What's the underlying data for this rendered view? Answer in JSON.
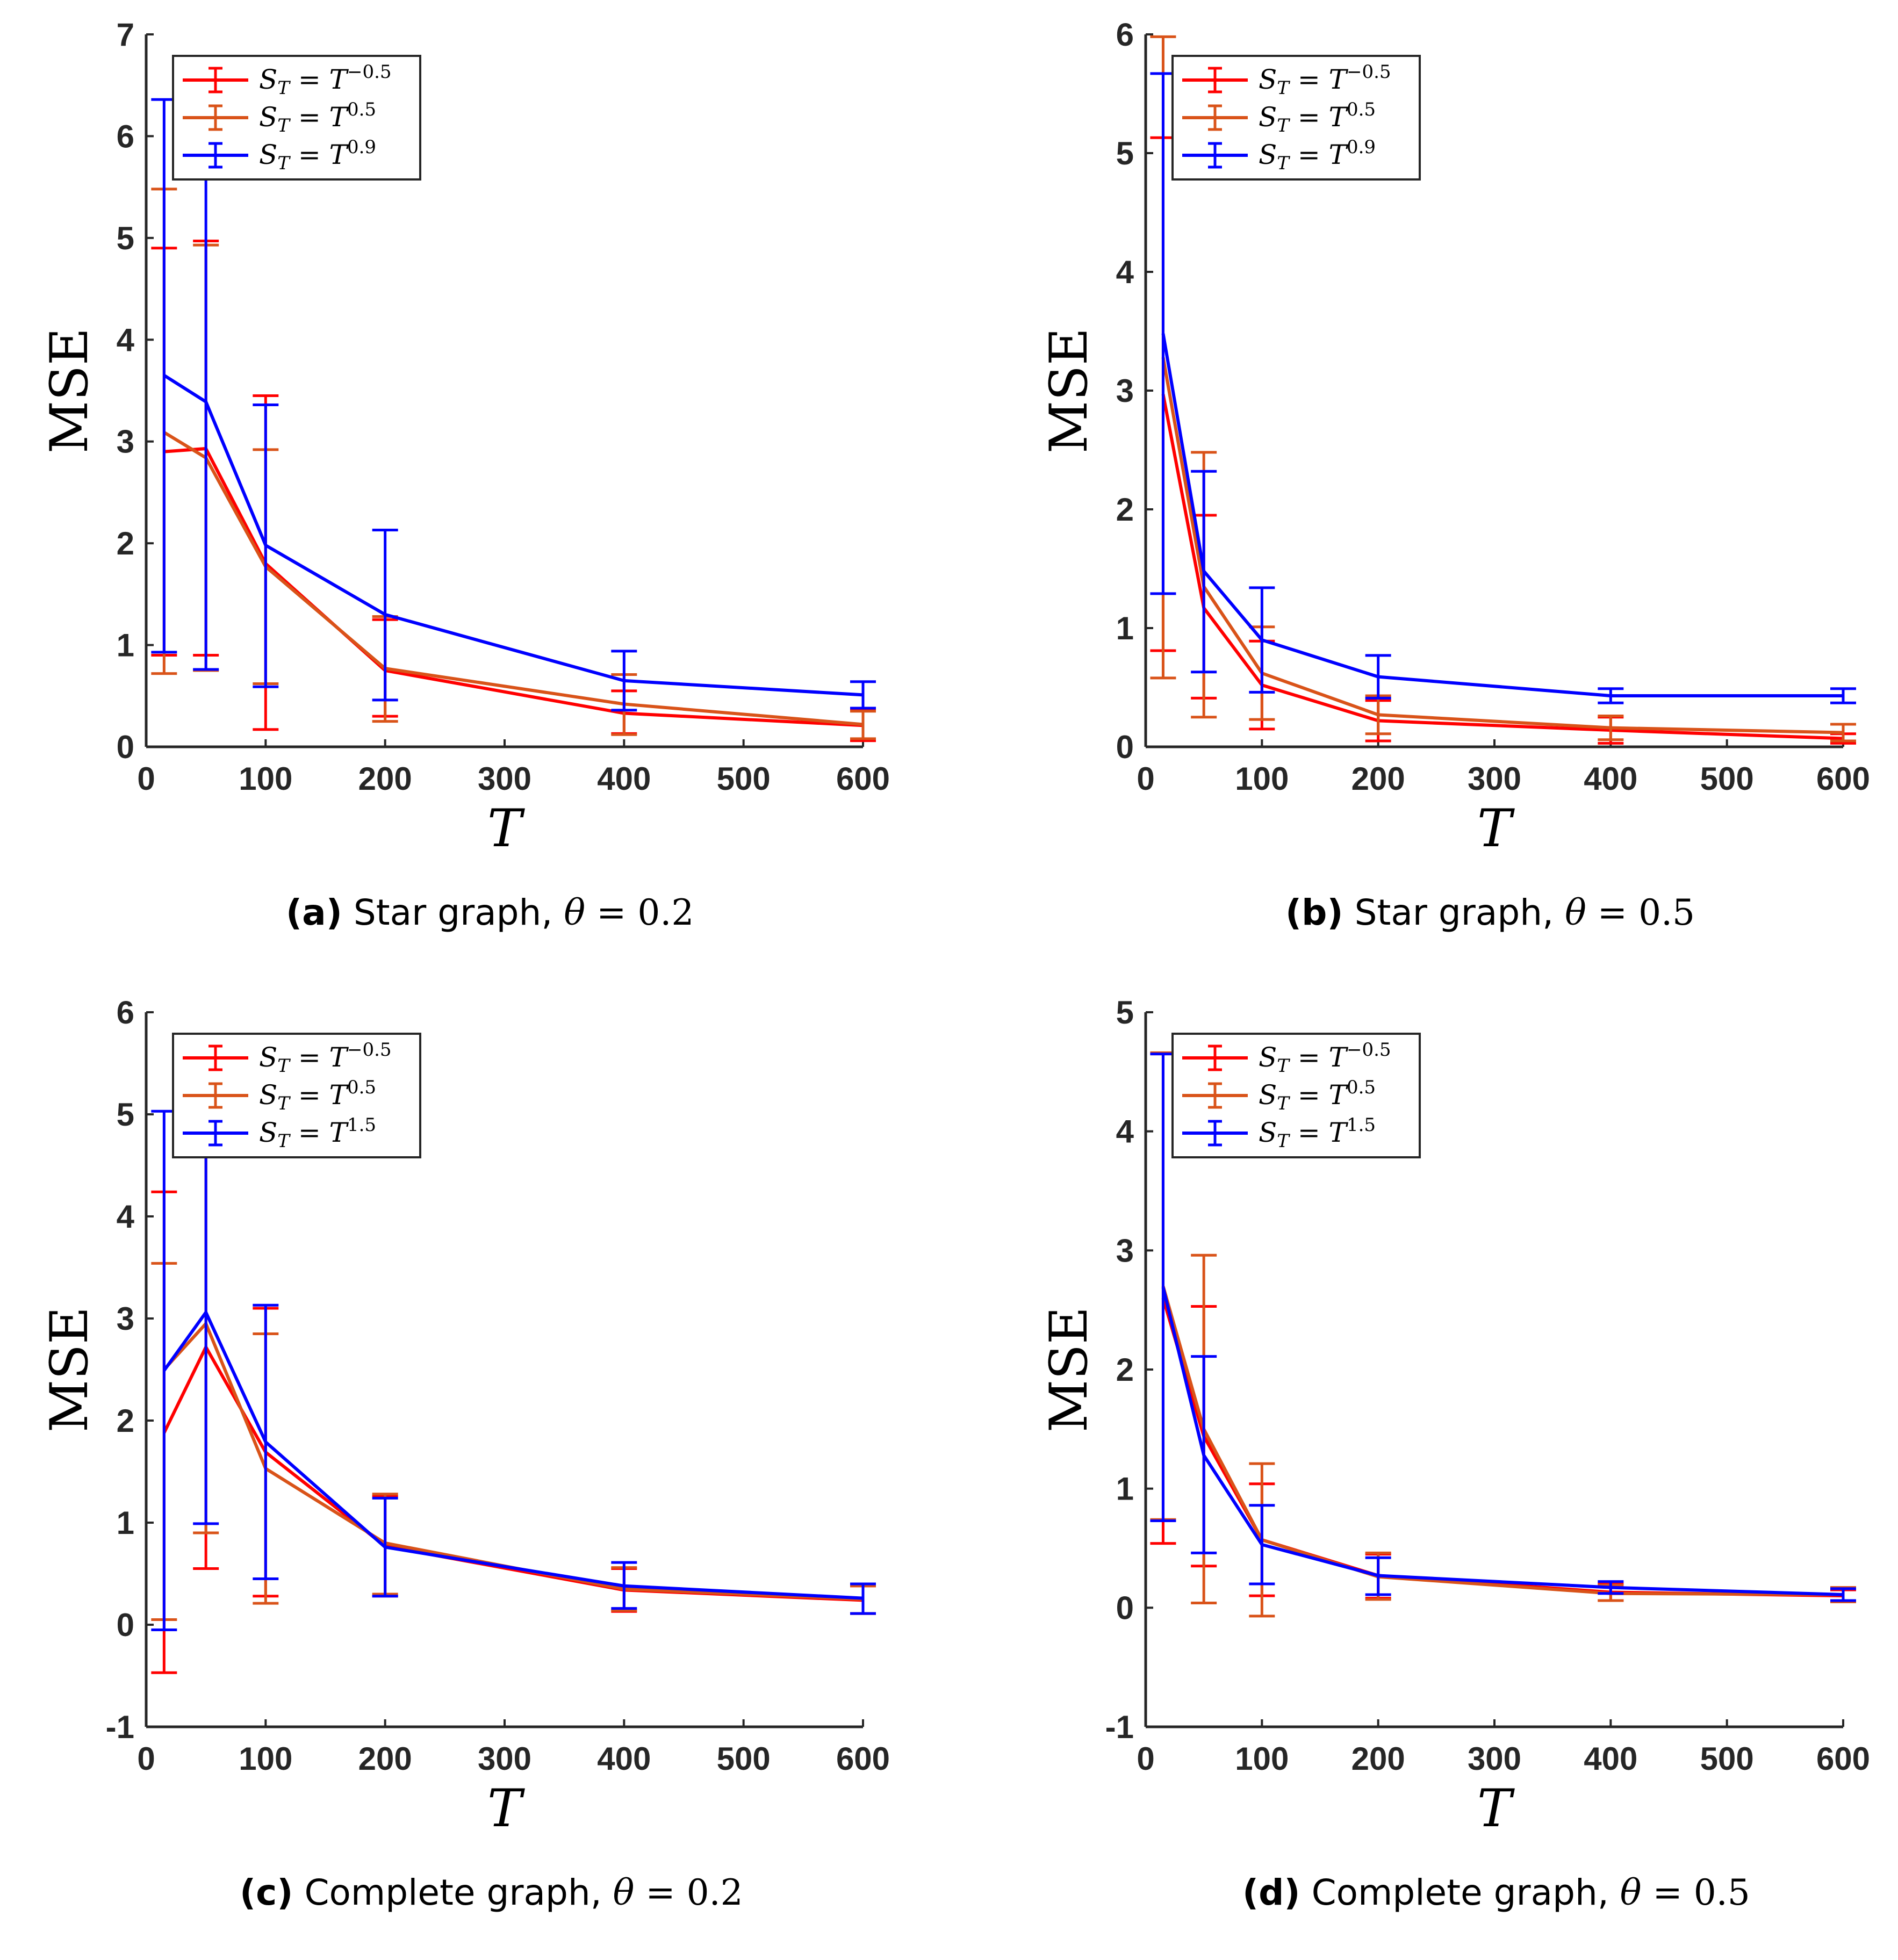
{
  "colors": {
    "red": "#ff0000",
    "orange": "#d95319",
    "blue": "#0000ff",
    "axis": "#262626"
  },
  "chart_data": [
    {
      "id": "a",
      "type": "line",
      "caption_label": "(a)",
      "caption_text": "Star graph, ",
      "caption_theta": "θ",
      "caption_eq": " = ",
      "caption_value": "0.2",
      "xlabel": "T",
      "ylabel": "MSE",
      "xlim": [
        0,
        600
      ],
      "ylim": [
        0,
        7
      ],
      "xticks": [
        "0",
        "100",
        "200",
        "300",
        "400",
        "500",
        "600"
      ],
      "yticks": [
        "0",
        "1",
        "2",
        "3",
        "4",
        "5",
        "6",
        "7"
      ],
      "x": [
        15,
        50,
        100,
        200,
        400,
        600
      ],
      "legend_base": "S",
      "legend_sub": "T",
      "legend_eq": " = T",
      "series": [
        {
          "name": "S_T = T^-0.5",
          "exponent": "−0.5",
          "color": "red",
          "values": [
            2.9,
            2.93,
            1.8,
            0.75,
            0.33,
            0.21
          ],
          "lower": [
            0.9,
            0.9,
            0.17,
            0.3,
            0.13,
            0.06
          ],
          "upper": [
            4.9,
            4.97,
            3.45,
            1.25,
            0.55,
            0.36
          ]
        },
        {
          "name": "S_T = T^0.5",
          "exponent": "0.5",
          "color": "orange",
          "values": [
            3.09,
            2.84,
            1.77,
            0.77,
            0.42,
            0.22
          ],
          "lower": [
            0.72,
            0.75,
            0.62,
            0.25,
            0.12,
            0.08
          ],
          "upper": [
            5.48,
            4.93,
            2.92,
            1.28,
            0.71,
            0.35
          ]
        },
        {
          "name": "S_T = T^0.9",
          "exponent": "0.9",
          "color": "blue",
          "values": [
            3.65,
            3.39,
            1.98,
            1.3,
            0.65,
            0.51
          ],
          "lower": [
            0.93,
            0.76,
            0.59,
            0.46,
            0.36,
            0.38
          ],
          "upper": [
            6.36,
            6.0,
            3.36,
            2.13,
            0.94,
            0.64
          ]
        }
      ]
    },
    {
      "id": "b",
      "type": "line",
      "caption_label": "(b)",
      "caption_text": "Star graph, ",
      "caption_theta": "θ",
      "caption_eq": " = ",
      "caption_value": "0.5",
      "xlabel": "T",
      "ylabel": "MSE",
      "xlim": [
        0,
        600
      ],
      "ylim": [
        0,
        6
      ],
      "xticks": [
        "0",
        "100",
        "200",
        "300",
        "400",
        "500",
        "600"
      ],
      "yticks": [
        "0",
        "1",
        "2",
        "3",
        "4",
        "5",
        "6"
      ],
      "x": [
        15,
        50,
        100,
        200,
        400,
        600
      ],
      "legend_base": "S",
      "legend_sub": "T",
      "legend_eq": " = T",
      "series": [
        {
          "name": "S_T = T^-0.5",
          "exponent": "−0.5",
          "color": "red",
          "values": [
            2.97,
            1.17,
            0.52,
            0.22,
            0.14,
            0.07
          ],
          "lower": [
            0.81,
            0.41,
            0.15,
            0.05,
            0.03,
            0.03
          ],
          "upper": [
            5.13,
            1.95,
            0.89,
            0.39,
            0.25,
            0.11
          ]
        },
        {
          "name": "S_T = T^0.5",
          "exponent": "0.5",
          "color": "orange",
          "values": [
            3.28,
            1.35,
            0.62,
            0.27,
            0.16,
            0.12
          ],
          "lower": [
            0.58,
            0.25,
            0.23,
            0.11,
            0.06,
            0.05
          ],
          "upper": [
            5.98,
            2.48,
            1.01,
            0.43,
            0.26,
            0.19
          ]
        },
        {
          "name": "S_T = T^0.9",
          "exponent": "0.9",
          "color": "blue",
          "values": [
            3.48,
            1.48,
            0.9,
            0.59,
            0.43,
            0.43
          ],
          "lower": [
            1.29,
            0.63,
            0.46,
            0.41,
            0.37,
            0.37
          ],
          "upper": [
            5.67,
            2.32,
            1.34,
            0.77,
            0.49,
            0.49
          ]
        }
      ]
    },
    {
      "id": "c",
      "type": "line",
      "caption_label": "(c)",
      "caption_text": "Complete graph, ",
      "caption_theta": "θ",
      "caption_eq": " = ",
      "caption_value": "0.2",
      "xlabel": "T",
      "ylabel": "MSE",
      "xlim": [
        0,
        600
      ],
      "ylim": [
        -1,
        6
      ],
      "xticks": [
        "0",
        "100",
        "200",
        "300",
        "400",
        "500",
        "600"
      ],
      "yticks": [
        "-1",
        "0",
        "1",
        "2",
        "3",
        "4",
        "5",
        "6"
      ],
      "x": [
        15,
        50,
        100,
        200,
        400,
        600
      ],
      "legend_base": "S",
      "legend_sub": "T",
      "legend_eq": " = T",
      "series": [
        {
          "name": "S_T = T^-0.5",
          "exponent": "−0.5",
          "color": "red",
          "values": [
            1.88,
            2.72,
            1.69,
            0.77,
            0.34,
            0.24
          ],
          "lower": [
            -0.47,
            0.55,
            0.28,
            0.28,
            0.13,
            0.11
          ],
          "upper": [
            4.24,
            4.9,
            3.1,
            1.26,
            0.55,
            0.38
          ]
        },
        {
          "name": "S_T = T^0.5",
          "exponent": "0.5",
          "color": "orange",
          "values": [
            2.5,
            2.95,
            1.53,
            0.8,
            0.35,
            0.25
          ],
          "lower": [
            0.05,
            0.9,
            0.21,
            0.3,
            0.14,
            0.11
          ],
          "upper": [
            3.54,
            5.0,
            2.85,
            1.28,
            0.56,
            0.38
          ]
        },
        {
          "name": "S_T = T^1.5",
          "exponent": "1.5",
          "color": "blue",
          "values": [
            2.49,
            3.06,
            1.79,
            0.76,
            0.38,
            0.26
          ],
          "lower": [
            -0.05,
            0.99,
            0.45,
            0.28,
            0.16,
            0.11
          ],
          "upper": [
            5.03,
            5.13,
            3.13,
            1.24,
            0.61,
            0.4
          ]
        }
      ]
    },
    {
      "id": "d",
      "type": "line",
      "caption_label": "(d)",
      "caption_text": "Complete graph, ",
      "caption_theta": "θ",
      "caption_eq": " = ",
      "caption_value": "0.5",
      "xlabel": "T",
      "ylabel": "MSE",
      "xlim": [
        0,
        600
      ],
      "ylim": [
        -1,
        5
      ],
      "xticks": [
        "0",
        "100",
        "200",
        "300",
        "400",
        "500",
        "600"
      ],
      "yticks": [
        "-1",
        "0",
        "1",
        "2",
        "3",
        "4",
        "5"
      ],
      "x": [
        15,
        50,
        100,
        200,
        400,
        600
      ],
      "legend_base": "S",
      "legend_sub": "T",
      "legend_eq": " = T",
      "series": [
        {
          "name": "S_T = T^-0.5",
          "exponent": "−0.5",
          "color": "red",
          "values": [
            2.6,
            1.44,
            0.57,
            0.27,
            0.13,
            0.1
          ],
          "lower": [
            0.54,
            0.35,
            0.1,
            0.08,
            0.06,
            0.05
          ],
          "upper": [
            4.65,
            2.53,
            1.04,
            0.45,
            0.2,
            0.15
          ]
        },
        {
          "name": "S_T = T^0.5",
          "exponent": "0.5",
          "color": "orange",
          "values": [
            2.7,
            1.5,
            0.57,
            0.26,
            0.12,
            0.11
          ],
          "lower": [
            0.74,
            0.04,
            -0.07,
            0.07,
            0.06,
            0.05
          ],
          "upper": [
            4.66,
            2.96,
            1.21,
            0.46,
            0.19,
            0.17
          ]
        },
        {
          "name": "S_T = T^1.5",
          "exponent": "1.5",
          "color": "blue",
          "values": [
            2.69,
            1.28,
            0.53,
            0.27,
            0.17,
            0.11
          ],
          "lower": [
            0.73,
            0.46,
            0.2,
            0.11,
            0.12,
            0.06
          ],
          "upper": [
            4.65,
            2.11,
            0.86,
            0.42,
            0.22,
            0.16
          ]
        }
      ]
    }
  ]
}
